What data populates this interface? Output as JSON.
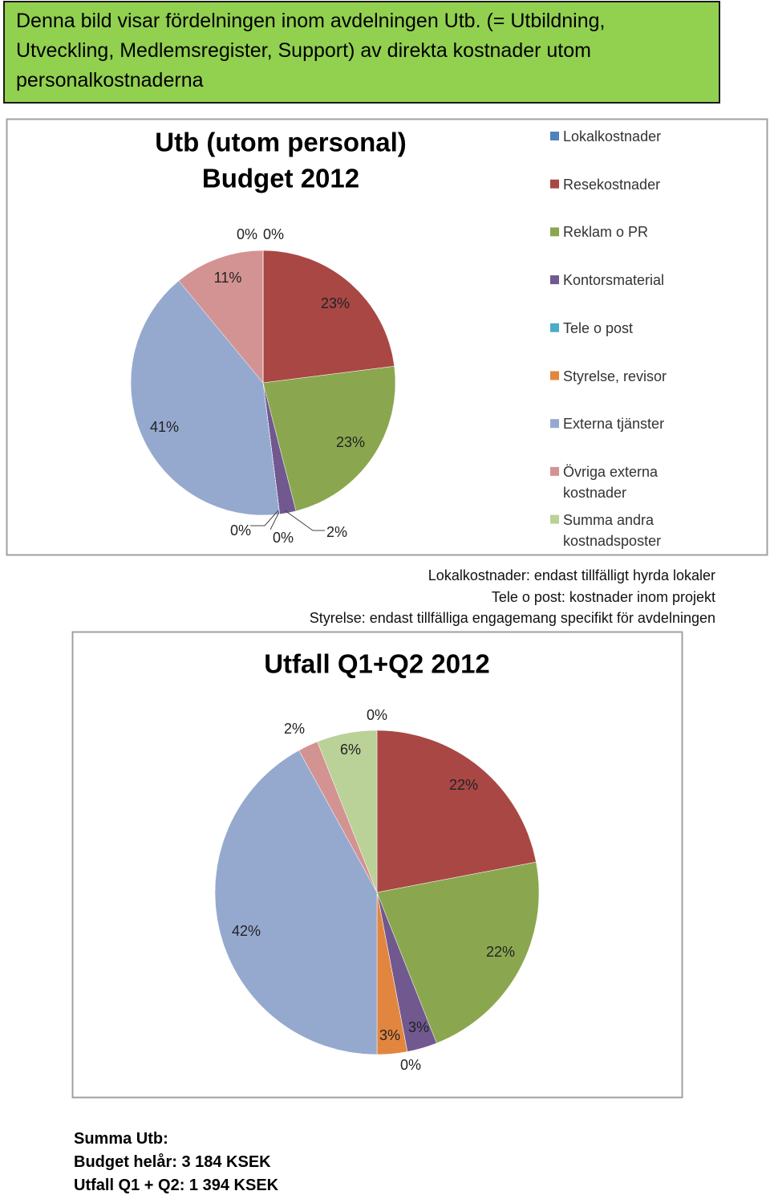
{
  "header": {
    "lines": [
      "Denna bild visar fördelningen inom avdelningen Utb. (= Utbildning,",
      "Utveckling, Medlemsregister, Support) av direkta kostnader utom",
      "personalkostnaderna"
    ]
  },
  "chart_data": [
    {
      "type": "pie",
      "title": [
        "Utb (utom personal)",
        "Budget 2012"
      ],
      "categories": [
        "Lokalkostnader",
        "Resekostnader",
        "Reklam o PR",
        "Kontorsmaterial",
        "Tele o post",
        "Styrelse, revisor",
        "Externa tjänster",
        "Övriga externa kostnader",
        "Summa andra kostnadsposter"
      ],
      "colors": [
        "#4f81bd",
        "#a94744",
        "#8aa74f",
        "#71588f",
        "#4bacc6",
        "#e2863f",
        "#95a9cf",
        "#d39392",
        "#bad197"
      ],
      "values": [
        0,
        23,
        23,
        2,
        0,
        0,
        41,
        11,
        0
      ],
      "value_labels": [
        "0%",
        "23%",
        "23%",
        "2%",
        "0%",
        "0%",
        "41%",
        "11%",
        "0%"
      ],
      "legend": "right"
    },
    {
      "type": "pie",
      "title": [
        "Utfall Q1+Q2 2012"
      ],
      "values": [
        0,
        22,
        22,
        3,
        0,
        3,
        42,
        2,
        6
      ],
      "value_labels": [
        "0%",
        "22%",
        "22%",
        "3%",
        "0%",
        "3%",
        "42%",
        "2%",
        "6%"
      ]
    }
  ],
  "notes": [
    "Lokalkostnader: endast tillfälligt hyrda lokaler",
    "Tele o post: kostnader inom projekt",
    "Styrelse: endast tillfälliga engagemang specifikt för avdelningen"
  ],
  "summary": [
    "Summa Utb:",
    "Budget helår: 3 184 KSEK",
    "Utfall Q1 + Q2: 1 394 KSEK"
  ]
}
